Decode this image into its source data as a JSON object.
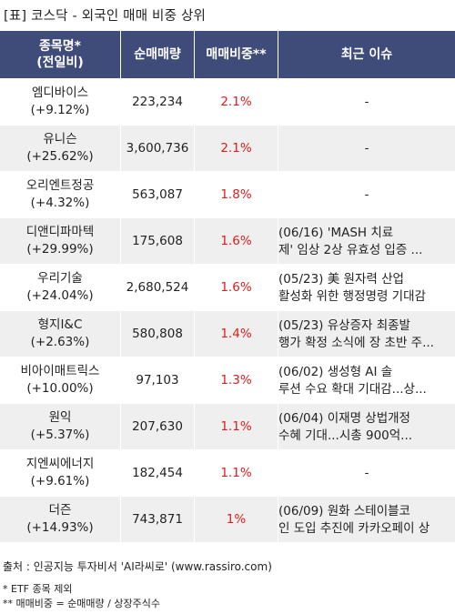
{
  "title": "[표] 코스닥 - 외국인 매매 비중 상위",
  "headers": {
    "name_line1": "종목명*",
    "name_line2": "(전일비)",
    "volume": "순매매량",
    "ratio": "매매비중**",
    "issue": "최근 이슈"
  },
  "rows": [
    {
      "name": "엠디바이스",
      "change": "(+9.12%)",
      "volume": "223,234",
      "ratio": "2.1%",
      "issue": "-"
    },
    {
      "name": "유니슨",
      "change": "(+25.62%)",
      "volume": "3,600,736",
      "ratio": "2.1%",
      "issue": "-"
    },
    {
      "name": "오리엔트정공",
      "change": "(+4.32%)",
      "volume": "563,087",
      "ratio": "1.8%",
      "issue": "-"
    },
    {
      "name": "디앤디파마텍",
      "change": "(+29.99%)",
      "volume": "175,608",
      "ratio": "1.6%",
      "issue": "(06/16) 'MASH 치료\n제' 임상 2상 유효성 입증 ..."
    },
    {
      "name": "우리기술",
      "change": "(+24.04%)",
      "volume": "2,680,524",
      "ratio": "1.6%",
      "issue": "(05/23) 美 원자력 산업\n 활성화 위한 행정명령 기대감"
    },
    {
      "name": "형지I&C",
      "change": "(+2.63%)",
      "volume": "580,808",
      "ratio": "1.4%",
      "issue": "(05/23) 유상증자 최종발\n행가 확정 소식에 장 초반 주..."
    },
    {
      "name": "비아이매트릭스",
      "change": "(+10.00%)",
      "volume": "97,103",
      "ratio": "1.3%",
      "issue": "(06/02) 생성형 AI 솔\n루션 수요 확대 기대감...상..."
    },
    {
      "name": "원익",
      "change": "(+5.37%)",
      "volume": "207,630",
      "ratio": "1.1%",
      "issue": "(06/04) 이재명 상법개정\n 수혜 기대...시총 900억..."
    },
    {
      "name": "지엔씨에너지",
      "change": "(+9.61%)",
      "volume": "182,454",
      "ratio": "1.1%",
      "issue": "-"
    },
    {
      "name": "더즌",
      "change": "(+14.93%)",
      "volume": "743,871",
      "ratio": "1%",
      "issue": "(06/09) 원화 스테이블코\n인 도입 추진에 카카오페이 상"
    }
  ],
  "footer": {
    "source": "출처 : 인공지능 투자비서 'AI라씨로' (www.rassiro.com)",
    "note1": "* ETF 종목 제외",
    "note2": "** 매매비중 = 순매매량 / 상장주식수"
  }
}
